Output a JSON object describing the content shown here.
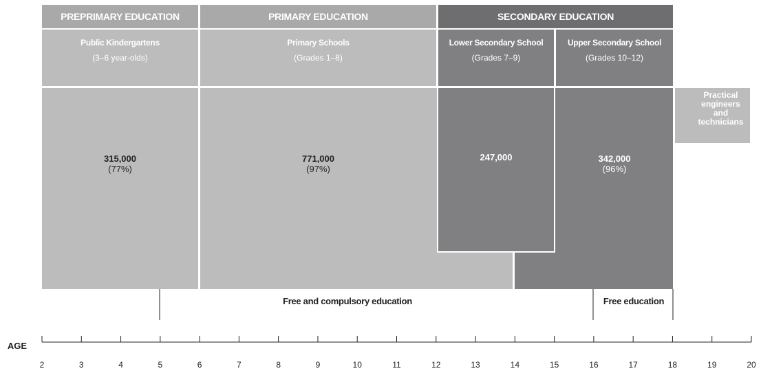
{
  "headers": [
    "PREPRIMARY EDUCATION",
    "PRIMARY EDUCATION",
    "SECONDARY EDUCATION"
  ],
  "blocks": [
    {
      "title": "Public Kindergartens",
      "subtitle": "(3–6 year-olds)",
      "value": "315,000",
      "share": "(77%)"
    },
    {
      "title": "Primary Schools",
      "subtitle": "(Grades 1–8)",
      "value": "771,000",
      "share": "(97%)"
    },
    {
      "title": "Lower Secondary School",
      "subtitle": "(Grades 7–9)",
      "value": "247,000"
    },
    {
      "title": "Upper Secondary School",
      "subtitle": "(Grades 10–12)",
      "value": "342,000",
      "share": "(96%)"
    }
  ],
  "side_box": "Practical engineers and technicians",
  "spans": [
    "Free and compulsory education",
    "Free education"
  ],
  "axis": {
    "label": "AGE",
    "ticks": [
      2,
      3,
      4,
      5,
      6,
      7,
      8,
      9,
      10,
      11,
      12,
      13,
      14,
      15,
      16,
      17,
      18,
      19,
      20
    ]
  }
}
